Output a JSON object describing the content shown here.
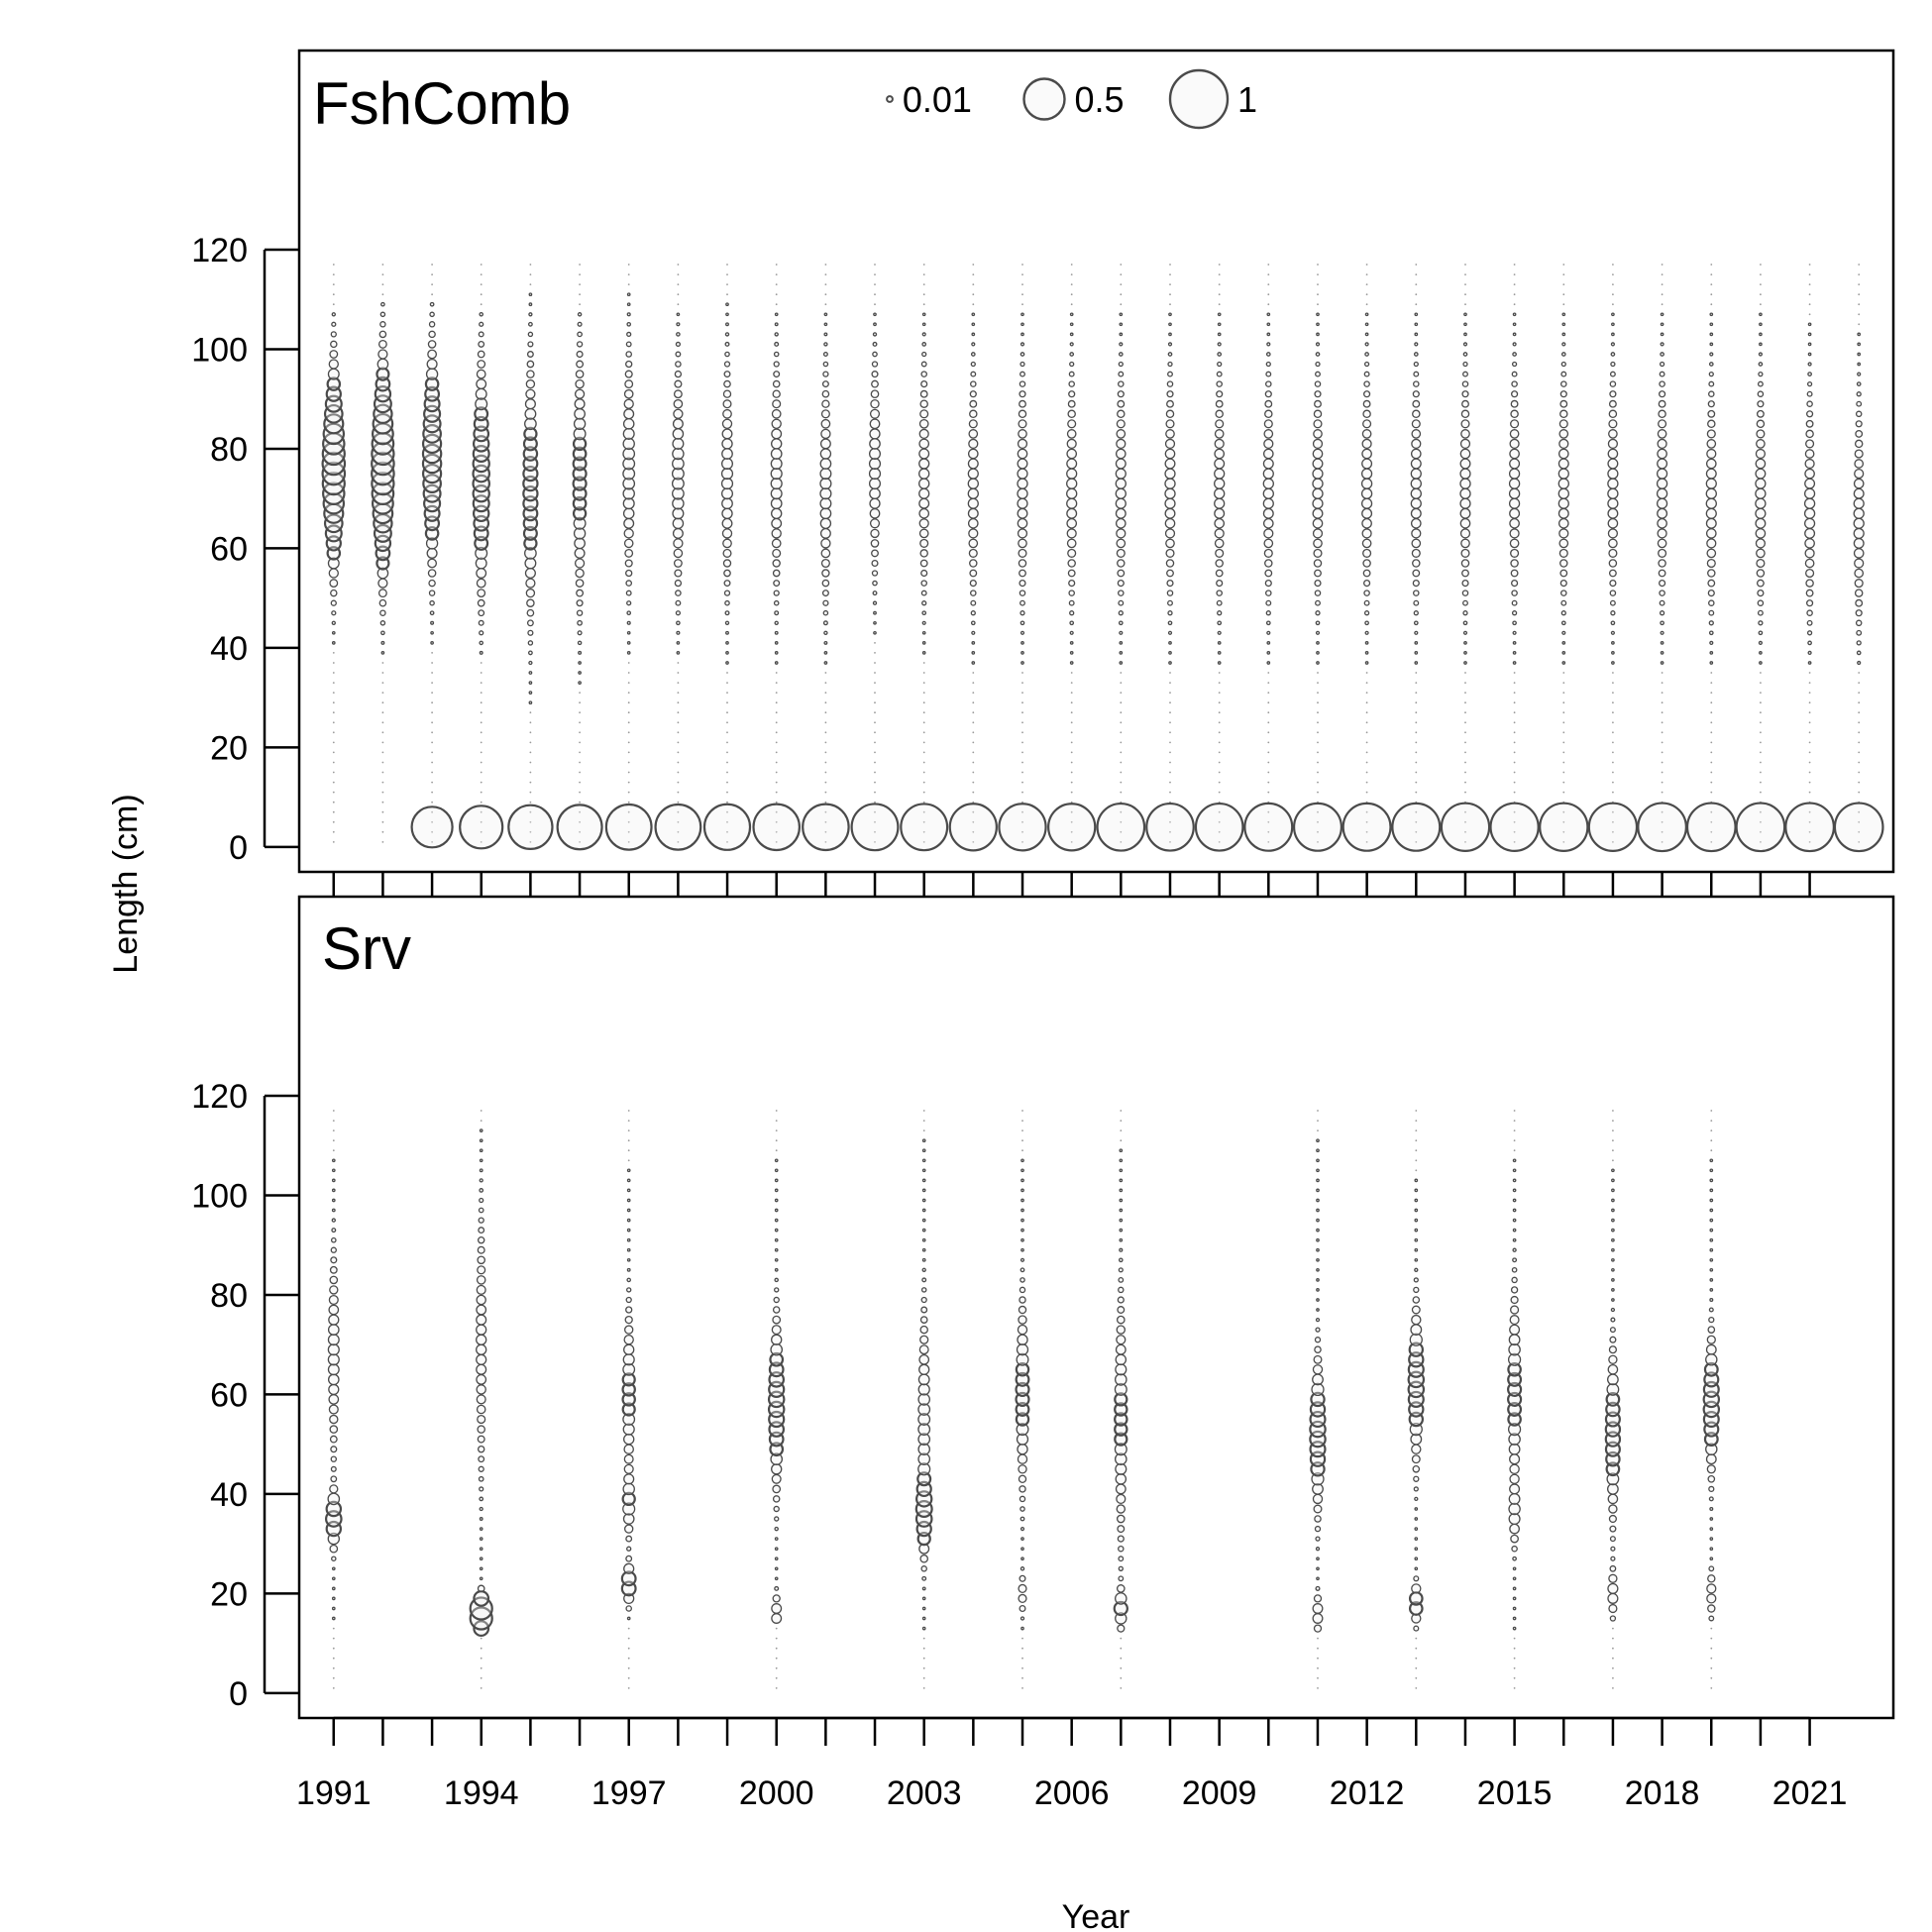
{
  "chart_data": [
    {
      "type": "scatter",
      "panel": "FshComb",
      "title": "FshComb",
      "xlabel": "Year",
      "ylabel": "Length (cm)",
      "xlim": [
        1990.3,
        2022.7
      ],
      "ylim": [
        -5,
        160
      ],
      "yticks": [
        0,
        20,
        40,
        60,
        80,
        100,
        120
      ],
      "legend": {
        "position": "top-center",
        "entries": [
          {
            "label": "0.01",
            "value": 0.01
          },
          {
            "label": "0.5",
            "value": 0.5
          },
          {
            "label": "1",
            "value": 1
          }
        ]
      },
      "bins": {
        "min": 1,
        "max": 117,
        "step": 2
      },
      "plus_group": {
        "length": 4,
        "years": [
          1993,
          1994,
          1995,
          1996,
          1997,
          1998,
          1999,
          2000,
          2001,
          2002,
          2003,
          2004,
          2005,
          2006,
          2007,
          2008,
          2009,
          2010,
          2011,
          2012,
          2013,
          2014,
          2015,
          2016,
          2017,
          2018,
          2019,
          2020,
          2021,
          2022
        ],
        "proportion": [
          0.5,
          0.55,
          0.58,
          0.6,
          0.62,
          0.62,
          0.63,
          0.64,
          0.64,
          0.65,
          0.65,
          0.66,
          0.66,
          0.66,
          0.67,
          0.67,
          0.67,
          0.68,
          0.68,
          0.68,
          0.68,
          0.69,
          0.69,
          0.69,
          0.69,
          0.7,
          0.7,
          0.7,
          0.7,
          0.7
        ]
      },
      "series": [
        {
          "year": 1991,
          "mu": 76,
          "sd": 11,
          "peak": 0.15,
          "range": [
            40,
            107
          ]
        },
        {
          "year": 1992,
          "mu": 76,
          "sd": 12,
          "peak": 0.15,
          "range": [
            38,
            110
          ]
        },
        {
          "year": 1993,
          "mu": 78,
          "sd": 12,
          "peak": 0.1,
          "range": [
            40,
            110
          ]
        },
        {
          "year": 1994,
          "mu": 74,
          "sd": 13,
          "peak": 0.08,
          "range": [
            38,
            108
          ]
        },
        {
          "year": 1995,
          "mu": 72,
          "sd": 14,
          "peak": 0.06,
          "range": [
            24,
            112
          ]
        },
        {
          "year": 1996,
          "mu": 74,
          "sd": 14,
          "peak": 0.05,
          "range": [
            30,
            108
          ]
        },
        {
          "year": 1997,
          "mu": 76,
          "sd": 13,
          "peak": 0.04,
          "range": [
            38,
            112
          ]
        },
        {
          "year": 1998,
          "mu": 74,
          "sd": 13,
          "peak": 0.04,
          "range": [
            38,
            108
          ]
        },
        {
          "year": 1999,
          "mu": 74,
          "sd": 13,
          "peak": 0.035,
          "range": [
            36,
            110
          ]
        },
        {
          "year": 2000,
          "mu": 74,
          "sd": 13,
          "peak": 0.035,
          "range": [
            36,
            108
          ]
        },
        {
          "year": 2001,
          "mu": 72,
          "sd": 13,
          "peak": 0.035,
          "range": [
            36,
            108
          ]
        },
        {
          "year": 2002,
          "mu": 76,
          "sd": 12,
          "peak": 0.035,
          "range": [
            40,
            108
          ]
        },
        {
          "year": 2003,
          "mu": 74,
          "sd": 13,
          "peak": 0.03,
          "range": [
            38,
            108
          ]
        },
        {
          "year": 2004,
          "mu": 72,
          "sd": 13,
          "peak": 0.03,
          "range": [
            36,
            108
          ]
        },
        {
          "year": 2005,
          "mu": 72,
          "sd": 13,
          "peak": 0.03,
          "range": [
            36,
            108
          ]
        },
        {
          "year": 2006,
          "mu": 72,
          "sd": 13,
          "peak": 0.03,
          "range": [
            36,
            108
          ]
        },
        {
          "year": 2007,
          "mu": 72,
          "sd": 13,
          "peak": 0.03,
          "range": [
            36,
            108
          ]
        },
        {
          "year": 2008,
          "mu": 72,
          "sd": 13,
          "peak": 0.03,
          "range": [
            36,
            108
          ]
        },
        {
          "year": 2009,
          "mu": 72,
          "sd": 13,
          "peak": 0.03,
          "range": [
            36,
            108
          ]
        },
        {
          "year": 2010,
          "mu": 72,
          "sd": 13,
          "peak": 0.03,
          "range": [
            36,
            108
          ]
        },
        {
          "year": 2011,
          "mu": 72,
          "sd": 13,
          "peak": 0.03,
          "range": [
            36,
            108
          ]
        },
        {
          "year": 2012,
          "mu": 72,
          "sd": 13,
          "peak": 0.03,
          "range": [
            36,
            108
          ]
        },
        {
          "year": 2013,
          "mu": 72,
          "sd": 13,
          "peak": 0.03,
          "range": [
            36,
            108
          ]
        },
        {
          "year": 2014,
          "mu": 72,
          "sd": 13,
          "peak": 0.03,
          "range": [
            36,
            108
          ]
        },
        {
          "year": 2015,
          "mu": 72,
          "sd": 13,
          "peak": 0.03,
          "range": [
            36,
            108
          ]
        },
        {
          "year": 2016,
          "mu": 72,
          "sd": 13,
          "peak": 0.03,
          "range": [
            36,
            108
          ]
        },
        {
          "year": 2017,
          "mu": 72,
          "sd": 13,
          "peak": 0.03,
          "range": [
            36,
            108
          ]
        },
        {
          "year": 2018,
          "mu": 72,
          "sd": 13,
          "peak": 0.03,
          "range": [
            36,
            108
          ]
        },
        {
          "year": 2019,
          "mu": 70,
          "sd": 13,
          "peak": 0.03,
          "range": [
            36,
            108
          ]
        },
        {
          "year": 2020,
          "mu": 70,
          "sd": 13,
          "peak": 0.03,
          "range": [
            36,
            108
          ]
        },
        {
          "year": 2021,
          "mu": 68,
          "sd": 13,
          "peak": 0.03,
          "range": [
            36,
            108
          ]
        },
        {
          "year": 2022,
          "mu": 66,
          "sd": 13,
          "peak": 0.03,
          "range": [
            36,
            108
          ]
        }
      ]
    },
    {
      "type": "scatter",
      "panel": "Srv",
      "title": "Srv",
      "xlabel": "Year",
      "ylabel": "Length (cm)",
      "xlim": [
        1990.3,
        2022.7
      ],
      "ylim": [
        -5,
        160
      ],
      "xticks": [
        1991,
        1994,
        1997,
        2000,
        2003,
        2006,
        2009,
        2012,
        2015,
        2018,
        2021
      ],
      "yticks": [
        0,
        20,
        40,
        60,
        80,
        100,
        120
      ],
      "bins": {
        "min": 1,
        "max": 117,
        "step": 2
      },
      "series": [
        {
          "year": 1991,
          "range": [
            14,
            107
          ],
          "components": [
            {
              "mu": 35,
              "sd": 3.5,
              "w": 0.07
            },
            {
              "mu": 68,
              "sd": 12,
              "w": 0.035
            }
          ]
        },
        {
          "year": 1994,
          "range": [
            12,
            114
          ],
          "components": [
            {
              "mu": 16,
              "sd": 2.2,
              "w": 0.16
            },
            {
              "mu": 70,
              "sd": 15,
              "w": 0.03
            }
          ]
        },
        {
          "year": 1997,
          "range": [
            15,
            106
          ],
          "components": [
            {
              "mu": 22,
              "sd": 2.5,
              "w": 0.06
            },
            {
              "mu": 38,
              "sd": 4,
              "w": 0.04
            },
            {
              "mu": 60,
              "sd": 10,
              "w": 0.045
            }
          ]
        },
        {
          "year": 2000,
          "range": [
            14,
            108
          ],
          "components": [
            {
              "mu": 16,
              "sd": 2.5,
              "w": 0.03
            },
            {
              "mu": 58,
              "sd": 10,
              "w": 0.07
            }
          ]
        },
        {
          "year": 2003,
          "range": [
            13,
            112
          ],
          "components": [
            {
              "mu": 36,
              "sd": 5,
              "w": 0.06
            },
            {
              "mu": 55,
              "sd": 13,
              "w": 0.04
            }
          ]
        },
        {
          "year": 2005,
          "range": [
            13,
            108
          ],
          "components": [
            {
              "mu": 20,
              "sd": 2.5,
              "w": 0.02
            },
            {
              "mu": 60,
              "sd": 11,
              "w": 0.05
            }
          ]
        },
        {
          "year": 2007,
          "range": [
            13,
            109
          ],
          "components": [
            {
              "mu": 17,
              "sd": 2.5,
              "w": 0.05
            },
            {
              "mu": 55,
              "sd": 14,
              "w": 0.045
            }
          ]
        },
        {
          "year": 2011,
          "range": [
            13,
            111
          ],
          "components": [
            {
              "mu": 16,
              "sd": 2.5,
              "w": 0.03
            },
            {
              "mu": 52,
              "sd": 9,
              "w": 0.07
            }
          ]
        },
        {
          "year": 2013,
          "range": [
            13,
            104
          ],
          "components": [
            {
              "mu": 18,
              "sd": 2.5,
              "w": 0.05
            },
            {
              "mu": 62,
              "sd": 9,
              "w": 0.07
            }
          ]
        },
        {
          "year": 2015,
          "range": [
            13,
            108
          ],
          "components": [
            {
              "mu": 36,
              "sd": 4,
              "w": 0.03
            },
            {
              "mu": 60,
              "sd": 12,
              "w": 0.05
            }
          ]
        },
        {
          "year": 2017,
          "range": [
            14,
            105
          ],
          "components": [
            {
              "mu": 20,
              "sd": 3,
              "w": 0.03
            },
            {
              "mu": 52,
              "sd": 10,
              "w": 0.06
            }
          ]
        },
        {
          "year": 2019,
          "range": [
            15,
            107
          ],
          "components": [
            {
              "mu": 20,
              "sd": 3,
              "w": 0.025
            },
            {
              "mu": 58,
              "sd": 8,
              "w": 0.07
            }
          ]
        }
      ]
    }
  ]
}
